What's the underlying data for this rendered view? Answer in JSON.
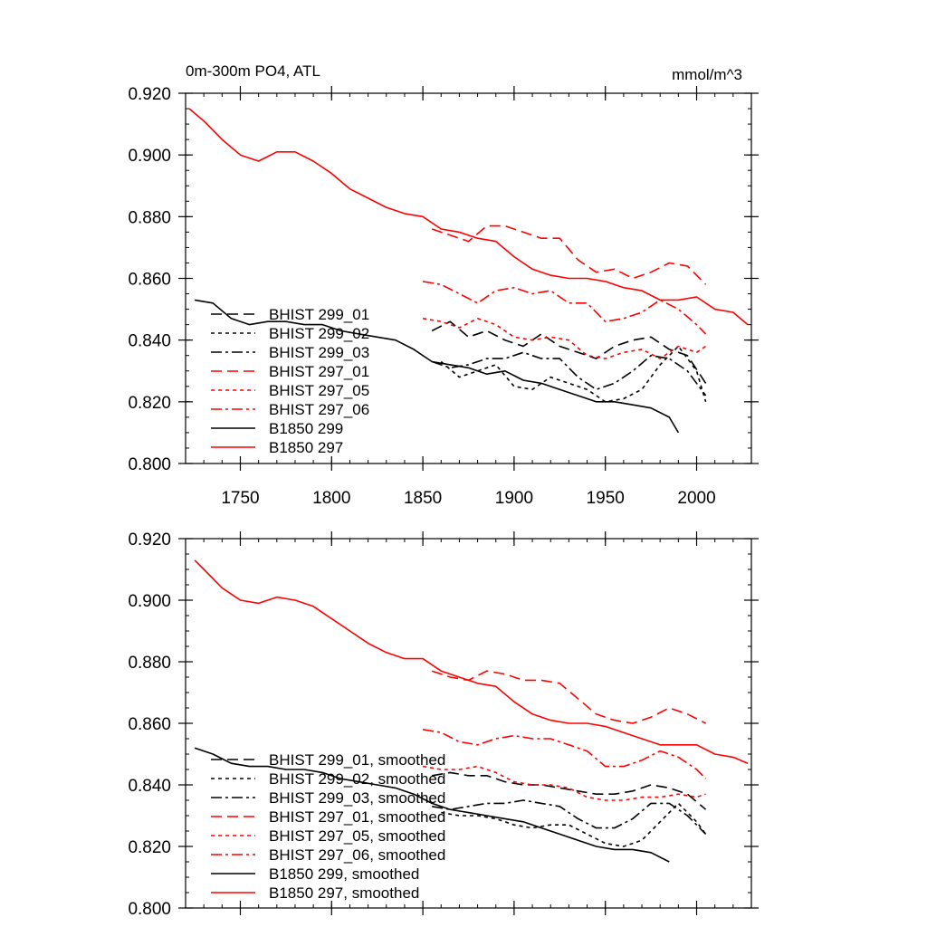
{
  "colors": {
    "black": "#000000",
    "red": "#ff0000"
  },
  "chart_data": [
    {
      "type": "line",
      "title": "0m-300m PO4, ATL",
      "units": "mmol/m^3",
      "xlim": [
        1720,
        2030
      ],
      "ylim": [
        0.8,
        0.92
      ],
      "xticks": [
        "1750",
        "1800",
        "1850",
        "1900",
        "1950",
        "2000"
      ],
      "yticks": [
        "0.800",
        "0.820",
        "0.840",
        "0.860",
        "0.880",
        "0.900",
        "0.920"
      ],
      "legend_position": "lower-left",
      "series": [
        {
          "name": "BHIST 299_01",
          "color": "#000000",
          "dash": "long-dash",
          "x": [
            1855,
            1865,
            1875,
            1885,
            1895,
            1905,
            1915,
            1925,
            1935,
            1945,
            1955,
            1965,
            1975,
            1985,
            1995,
            2005
          ],
          "y": [
            0.843,
            0.846,
            0.841,
            0.843,
            0.84,
            0.838,
            0.842,
            0.838,
            0.836,
            0.834,
            0.838,
            0.84,
            0.841,
            0.837,
            0.835,
            0.826
          ]
        },
        {
          "name": "BHIST 299_02",
          "color": "#000000",
          "dash": "short-dash",
          "x": [
            1860,
            1870,
            1880,
            1890,
            1900,
            1910,
            1920,
            1930,
            1940,
            1950,
            1960,
            1970,
            1980,
            1990,
            2000,
            2005
          ],
          "y": [
            0.833,
            0.828,
            0.83,
            0.832,
            0.825,
            0.824,
            0.828,
            0.826,
            0.824,
            0.82,
            0.821,
            0.824,
            0.832,
            0.838,
            0.83,
            0.82
          ]
        },
        {
          "name": "BHIST 299_03",
          "color": "#000000",
          "dash": "dash-dot",
          "x": [
            1855,
            1865,
            1875,
            1885,
            1895,
            1905,
            1915,
            1925,
            1935,
            1945,
            1955,
            1965,
            1975,
            1985,
            1995,
            2005
          ],
          "y": [
            0.833,
            0.831,
            0.832,
            0.834,
            0.834,
            0.836,
            0.834,
            0.834,
            0.828,
            0.824,
            0.826,
            0.83,
            0.835,
            0.834,
            0.83,
            0.822
          ]
        },
        {
          "name": "BHIST 297_01",
          "color": "#ff0000",
          "dash": "long-dash",
          "x": [
            1855,
            1865,
            1875,
            1885,
            1895,
            1905,
            1915,
            1925,
            1935,
            1945,
            1955,
            1965,
            1975,
            1985,
            1995,
            2005
          ],
          "y": [
            0.876,
            0.874,
            0.872,
            0.877,
            0.877,
            0.875,
            0.873,
            0.873,
            0.866,
            0.862,
            0.863,
            0.86,
            0.862,
            0.865,
            0.864,
            0.858
          ]
        },
        {
          "name": "BHIST 297_05",
          "color": "#ff0000",
          "dash": "short-dash",
          "x": [
            1850,
            1860,
            1870,
            1880,
            1890,
            1900,
            1910,
            1920,
            1930,
            1940,
            1950,
            1960,
            1970,
            1980,
            1990,
            2000,
            2005
          ],
          "y": [
            0.847,
            0.846,
            0.844,
            0.847,
            0.845,
            0.841,
            0.84,
            0.841,
            0.84,
            0.835,
            0.834,
            0.836,
            0.837,
            0.834,
            0.838,
            0.836,
            0.838
          ]
        },
        {
          "name": "BHIST 297_06",
          "color": "#ff0000",
          "dash": "dash-dot",
          "x": [
            1850,
            1860,
            1870,
            1880,
            1890,
            1900,
            1910,
            1920,
            1930,
            1940,
            1950,
            1960,
            1970,
            1980,
            1990,
            2000,
            2005
          ],
          "y": [
            0.859,
            0.858,
            0.855,
            0.852,
            0.856,
            0.857,
            0.855,
            0.856,
            0.852,
            0.852,
            0.846,
            0.847,
            0.849,
            0.853,
            0.85,
            0.845,
            0.842
          ]
        },
        {
          "name": "B1850 299",
          "color": "#000000",
          "dash": "solid",
          "x": [
            1725,
            1735,
            1745,
            1755,
            1765,
            1775,
            1785,
            1795,
            1805,
            1815,
            1825,
            1835,
            1845,
            1855,
            1865,
            1875,
            1885,
            1895,
            1905,
            1915,
            1925,
            1935,
            1945,
            1955,
            1965,
            1975,
            1985,
            1990
          ],
          "y": [
            0.853,
            0.852,
            0.847,
            0.845,
            0.846,
            0.846,
            0.845,
            0.845,
            0.843,
            0.842,
            0.841,
            0.84,
            0.837,
            0.833,
            0.832,
            0.831,
            0.829,
            0.83,
            0.827,
            0.826,
            0.824,
            0.822,
            0.82,
            0.82,
            0.819,
            0.818,
            0.815,
            0.81
          ]
        },
        {
          "name": "B1850 297",
          "color": "#ff0000",
          "dash": "solid",
          "x": [
            1722,
            1730,
            1740,
            1750,
            1760,
            1770,
            1780,
            1790,
            1800,
            1810,
            1820,
            1830,
            1840,
            1850,
            1860,
            1870,
            1880,
            1890,
            1900,
            1910,
            1920,
            1930,
            1940,
            1950,
            1960,
            1970,
            1980,
            1990,
            2000,
            2010,
            2020,
            2028
          ],
          "y": [
            0.915,
            0.911,
            0.905,
            0.9,
            0.898,
            0.901,
            0.901,
            0.898,
            0.894,
            0.889,
            0.886,
            0.883,
            0.881,
            0.88,
            0.876,
            0.875,
            0.873,
            0.872,
            0.867,
            0.863,
            0.861,
            0.86,
            0.86,
            0.859,
            0.857,
            0.856,
            0.853,
            0.853,
            0.854,
            0.85,
            0.849,
            0.845
          ]
        }
      ]
    },
    {
      "type": "line",
      "xlim": [
        1720,
        2030
      ],
      "ylim": [
        0.8,
        0.92
      ],
      "xticks": [
        "",
        "",
        "",
        "",
        "",
        ""
      ],
      "yticks": [
        "0.800",
        "0.820",
        "0.840",
        "0.860",
        "0.880",
        "0.900",
        "0.920"
      ],
      "legend_position": "lower-left",
      "series": [
        {
          "name": "BHIST 299_01, smoothed",
          "color": "#000000",
          "dash": "long-dash",
          "x": [
            1855,
            1865,
            1875,
            1885,
            1895,
            1905,
            1915,
            1925,
            1935,
            1945,
            1955,
            1965,
            1975,
            1985,
            1995,
            2005
          ],
          "y": [
            0.843,
            0.844,
            0.843,
            0.843,
            0.841,
            0.84,
            0.84,
            0.839,
            0.838,
            0.837,
            0.837,
            0.838,
            0.84,
            0.839,
            0.837,
            0.832
          ]
        },
        {
          "name": "BHIST 299_02, smoothed",
          "color": "#000000",
          "dash": "short-dash",
          "x": [
            1860,
            1870,
            1880,
            1890,
            1900,
            1910,
            1920,
            1930,
            1940,
            1950,
            1960,
            1970,
            1980,
            1990,
            2000,
            2005
          ],
          "y": [
            0.831,
            0.83,
            0.83,
            0.829,
            0.827,
            0.826,
            0.827,
            0.827,
            0.824,
            0.821,
            0.82,
            0.822,
            0.828,
            0.834,
            0.828,
            0.824
          ]
        },
        {
          "name": "BHIST 299_03, smoothed",
          "color": "#000000",
          "dash": "dash-dot",
          "x": [
            1855,
            1865,
            1875,
            1885,
            1895,
            1905,
            1915,
            1925,
            1935,
            1945,
            1955,
            1965,
            1975,
            1985,
            1995,
            2005
          ],
          "y": [
            0.833,
            0.832,
            0.833,
            0.834,
            0.834,
            0.835,
            0.834,
            0.833,
            0.829,
            0.826,
            0.826,
            0.829,
            0.834,
            0.834,
            0.83,
            0.824
          ]
        },
        {
          "name": "BHIST 297_01, smoothed",
          "color": "#ff0000",
          "dash": "long-dash",
          "x": [
            1855,
            1865,
            1875,
            1885,
            1895,
            1905,
            1915,
            1925,
            1935,
            1945,
            1955,
            1965,
            1975,
            1985,
            1995,
            2005
          ],
          "y": [
            0.877,
            0.875,
            0.874,
            0.877,
            0.876,
            0.874,
            0.874,
            0.873,
            0.868,
            0.863,
            0.861,
            0.86,
            0.862,
            0.865,
            0.863,
            0.86
          ]
        },
        {
          "name": "BHIST 297_05, smoothed",
          "color": "#ff0000",
          "dash": "short-dash",
          "x": [
            1850,
            1860,
            1870,
            1880,
            1890,
            1900,
            1910,
            1920,
            1930,
            1940,
            1950,
            1960,
            1970,
            1980,
            1990,
            2000,
            2005
          ],
          "y": [
            0.846,
            0.845,
            0.845,
            0.846,
            0.844,
            0.841,
            0.84,
            0.84,
            0.839,
            0.836,
            0.835,
            0.835,
            0.836,
            0.836,
            0.837,
            0.836,
            0.837
          ]
        },
        {
          "name": "BHIST 297_06, smoothed",
          "color": "#ff0000",
          "dash": "dash-dot",
          "x": [
            1850,
            1860,
            1870,
            1880,
            1890,
            1900,
            1910,
            1920,
            1930,
            1940,
            1950,
            1960,
            1970,
            1980,
            1990,
            2000,
            2005
          ],
          "y": [
            0.858,
            0.857,
            0.854,
            0.853,
            0.855,
            0.856,
            0.855,
            0.855,
            0.853,
            0.851,
            0.846,
            0.846,
            0.848,
            0.851,
            0.849,
            0.845,
            0.842
          ]
        },
        {
          "name": "B1850 299, smoothed",
          "color": "#000000",
          "dash": "solid",
          "x": [
            1725,
            1735,
            1745,
            1755,
            1765,
            1775,
            1785,
            1795,
            1805,
            1815,
            1825,
            1835,
            1845,
            1855,
            1865,
            1875,
            1885,
            1895,
            1905,
            1915,
            1925,
            1935,
            1945,
            1955,
            1965,
            1975,
            1985
          ],
          "y": [
            0.852,
            0.85,
            0.847,
            0.846,
            0.846,
            0.845,
            0.845,
            0.844,
            0.842,
            0.841,
            0.84,
            0.839,
            0.837,
            0.834,
            0.832,
            0.831,
            0.83,
            0.829,
            0.828,
            0.826,
            0.824,
            0.822,
            0.82,
            0.819,
            0.819,
            0.818,
            0.815
          ]
        },
        {
          "name": "B1850 297, smoothed",
          "color": "#ff0000",
          "dash": "solid",
          "x": [
            1725,
            1730,
            1740,
            1750,
            1760,
            1770,
            1780,
            1790,
            1800,
            1810,
            1820,
            1830,
            1840,
            1850,
            1860,
            1870,
            1880,
            1890,
            1900,
            1910,
            1920,
            1930,
            1940,
            1950,
            1960,
            1970,
            1980,
            1990,
            2000,
            2010,
            2020,
            2028
          ],
          "y": [
            0.913,
            0.91,
            0.904,
            0.9,
            0.899,
            0.901,
            0.9,
            0.898,
            0.894,
            0.89,
            0.886,
            0.883,
            0.881,
            0.881,
            0.877,
            0.875,
            0.873,
            0.872,
            0.867,
            0.863,
            0.861,
            0.86,
            0.86,
            0.859,
            0.857,
            0.855,
            0.853,
            0.853,
            0.853,
            0.85,
            0.849,
            0.847
          ]
        }
      ]
    }
  ]
}
